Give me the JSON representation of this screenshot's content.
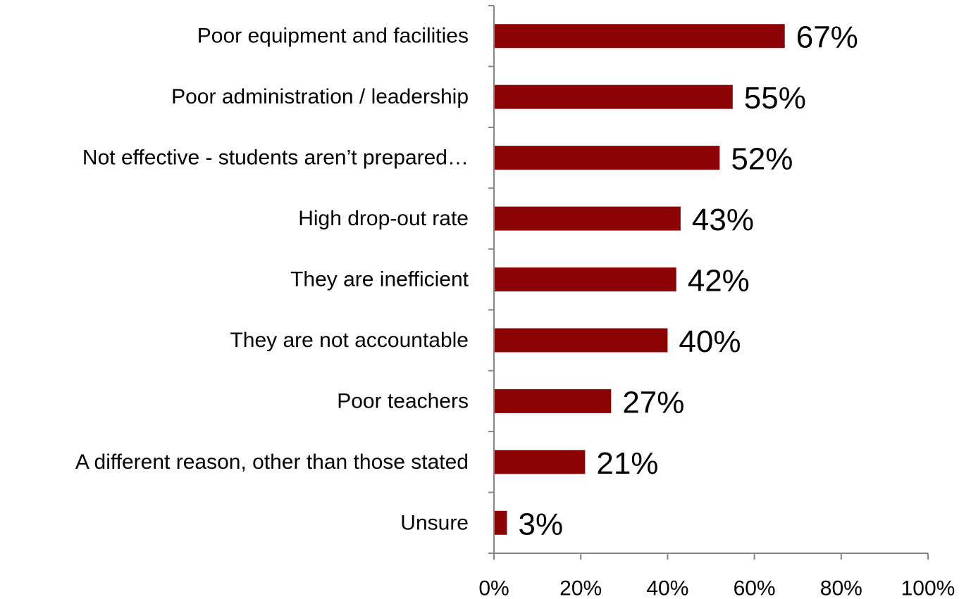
{
  "chart_data": {
    "type": "bar",
    "orientation": "horizontal",
    "categories": [
      "Poor equipment and facilities",
      "Poor administration / leadership",
      "Not effective - students aren’t prepared…",
      "High drop-out rate",
      "They are inefficient",
      "They are not accountable",
      "Poor teachers",
      "A different reason, other than those stated",
      "Unsure"
    ],
    "values": [
      67,
      55,
      52,
      43,
      42,
      40,
      27,
      21,
      3
    ],
    "value_labels": [
      "67%",
      "55%",
      "52%",
      "43%",
      "42%",
      "40%",
      "27%",
      "21%",
      "3%"
    ],
    "xlim": [
      0,
      100
    ],
    "xticks": [
      0,
      20,
      40,
      60,
      80,
      100
    ],
    "xtick_labels": [
      "0%",
      "20%",
      "40%",
      "60%",
      "80%",
      "100%"
    ],
    "bar_color": "#8B0304",
    "grid": false,
    "legend": "none"
  }
}
